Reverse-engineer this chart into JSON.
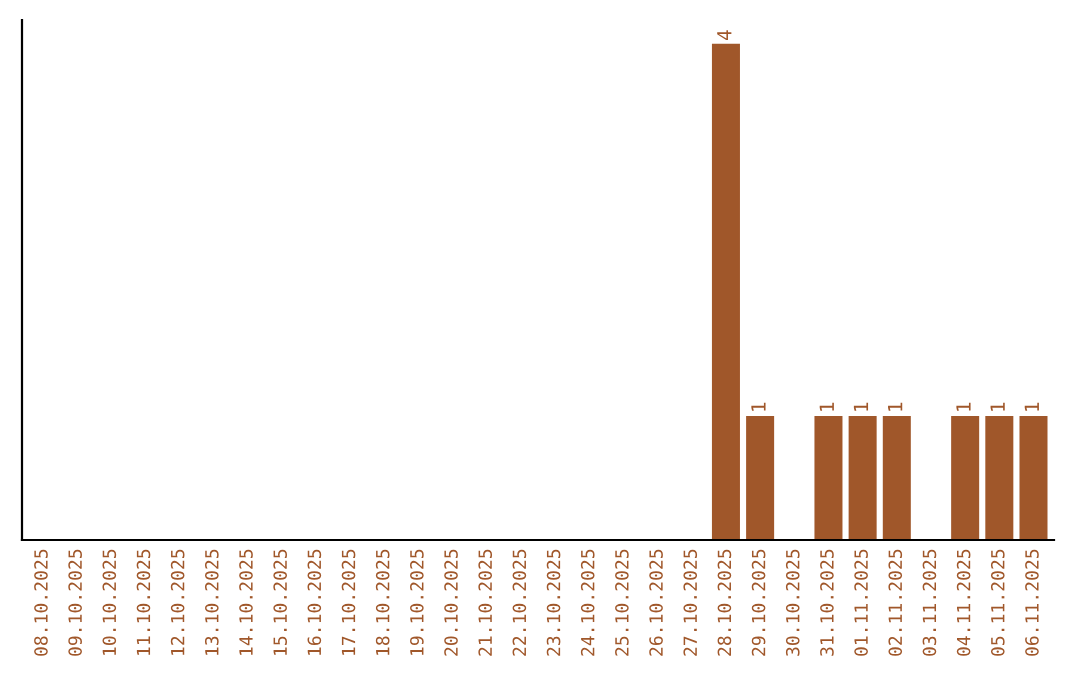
{
  "chart_data": {
    "type": "bar",
    "categories": [
      "08.10.2025",
      "09.10.2025",
      "10.10.2025",
      "11.10.2025",
      "12.10.2025",
      "13.10.2025",
      "14.10.2025",
      "15.10.2025",
      "16.10.2025",
      "17.10.2025",
      "18.10.2025",
      "19.10.2025",
      "20.10.2025",
      "21.10.2025",
      "22.10.2025",
      "23.10.2025",
      "24.10.2025",
      "25.10.2025",
      "26.10.2025",
      "27.10.2025",
      "28.10.2025",
      "29.10.2025",
      "30.10.2025",
      "31.10.2025",
      "01.11.2025",
      "02.11.2025",
      "03.11.2025",
      "04.11.2025",
      "05.11.2025",
      "06.11.2025"
    ],
    "values": [
      null,
      null,
      null,
      null,
      null,
      null,
      null,
      null,
      null,
      null,
      null,
      null,
      null,
      null,
      null,
      null,
      null,
      null,
      null,
      null,
      4,
      1,
      null,
      1,
      1,
      1,
      null,
      1,
      1,
      1
    ],
    "data_labels": true,
    "color": "#a0572a",
    "grid": false,
    "legend": false
  }
}
